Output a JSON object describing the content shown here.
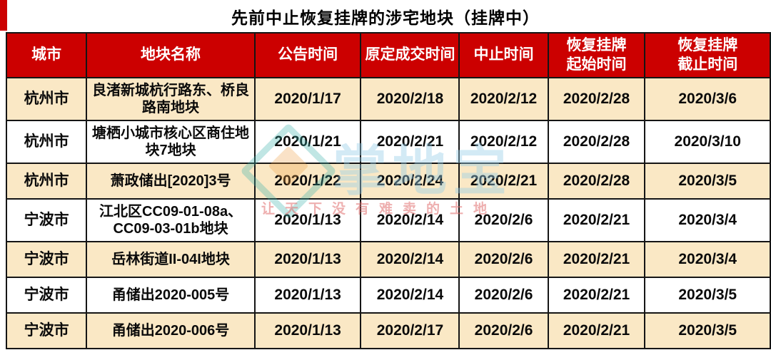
{
  "title": "先前中止恢复挂牌的涉宅地块（挂牌中）",
  "watermark": {
    "logo": "cube-diamond-logo-icon",
    "brand": "掌地宝",
    "tagline": "让天下没有难卖的土地"
  },
  "colors": {
    "header_bg": "#cc0000",
    "row_alt_bg": "#fae8c5",
    "border": "#151515",
    "header_text": "#ffffff",
    "body_text": "#0a0a0a"
  },
  "table": {
    "headers": [
      {
        "key": "city",
        "label": "城市"
      },
      {
        "key": "name",
        "label": "地块名称"
      },
      {
        "key": "announce",
        "label": "公告时间"
      },
      {
        "key": "original",
        "label": "原定成交时间"
      },
      {
        "key": "suspend",
        "label": "中止时间"
      },
      {
        "key": "resume_start",
        "label": "恢复挂牌\n起始时间"
      },
      {
        "key": "resume_end",
        "label": "恢复挂牌\n截止时间"
      }
    ],
    "rows": [
      {
        "city": "杭州市",
        "name": "良渚新城杭行路东、桥良路南地块",
        "announce": "2020/1/17",
        "original": "2020/2/18",
        "suspend": "2020/2/12",
        "resume_start": "2020/2/28",
        "resume_end": "2020/3/6"
      },
      {
        "city": "杭州市",
        "name": "塘栖小城市核心区商住地块7地块",
        "announce": "2020/1/21",
        "original": "2020/2/21",
        "suspend": "2020/2/12",
        "resume_start": "2020/2/28",
        "resume_end": "2020/3/10"
      },
      {
        "city": "杭州市",
        "name": "萧政储出[2020]3号",
        "announce": "2020/1/22",
        "original": "2020/2/24",
        "suspend": "2020/2/21",
        "resume_start": "2020/2/28",
        "resume_end": "2020/3/5"
      },
      {
        "city": "宁波市",
        "name": "江北区CC09-01-08a、CC09-03-01b地块",
        "announce": "2020/1/13",
        "original": "2020/2/14",
        "suspend": "2020/2/6",
        "resume_start": "2020/2/21",
        "resume_end": "2020/3/4"
      },
      {
        "city": "宁波市",
        "name": "岳林街道II-04I地块",
        "announce": "2020/1/13",
        "original": "2020/2/14",
        "suspend": "2020/2/6",
        "resume_start": "2020/2/21",
        "resume_end": "2020/3/4"
      },
      {
        "city": "宁波市",
        "name": "甬储出2020-005号",
        "announce": "2020/1/13",
        "original": "2020/2/14",
        "suspend": "2020/2/6",
        "resume_start": "2020/2/21",
        "resume_end": "2020/3/5"
      },
      {
        "city": "宁波市",
        "name": "甬储出2020-006号",
        "announce": "2020/1/13",
        "original": "2020/2/17",
        "suspend": "2020/2/6",
        "resume_start": "2020/2/21",
        "resume_end": "2020/3/5"
      }
    ]
  },
  "chart_data": {
    "type": "table",
    "title": "先前中止恢复挂牌的涉宅地块（挂牌中）",
    "columns": [
      "城市",
      "地块名称",
      "公告时间",
      "原定成交时间",
      "中止时间",
      "恢复挂牌起始时间",
      "恢复挂牌截止时间"
    ],
    "rows": [
      [
        "杭州市",
        "良渚新城杭行路东、桥良路南地块",
        "2020/1/17",
        "2020/2/18",
        "2020/2/12",
        "2020/2/28",
        "2020/3/6"
      ],
      [
        "杭州市",
        "塘栖小城市核心区商住地块7地块",
        "2020/1/21",
        "2020/2/21",
        "2020/2/12",
        "2020/2/28",
        "2020/3/10"
      ],
      [
        "杭州市",
        "萧政储出[2020]3号",
        "2020/1/22",
        "2020/2/24",
        "2020/2/21",
        "2020/2/28",
        "2020/3/5"
      ],
      [
        "宁波市",
        "江北区CC09-01-08a、CC09-03-01b地块",
        "2020/1/13",
        "2020/2/14",
        "2020/2/6",
        "2020/2/21",
        "2020/3/4"
      ],
      [
        "宁波市",
        "岳林街道II-04I地块",
        "2020/1/13",
        "2020/2/14",
        "2020/2/6",
        "2020/2/21",
        "2020/3/4"
      ],
      [
        "宁波市",
        "甬储出2020-005号",
        "2020/1/13",
        "2020/2/14",
        "2020/2/6",
        "2020/2/21",
        "2020/3/5"
      ],
      [
        "宁波市",
        "甬储出2020-006号",
        "2020/1/13",
        "2020/2/17",
        "2020/2/6",
        "2020/2/21",
        "2020/3/5"
      ]
    ]
  }
}
